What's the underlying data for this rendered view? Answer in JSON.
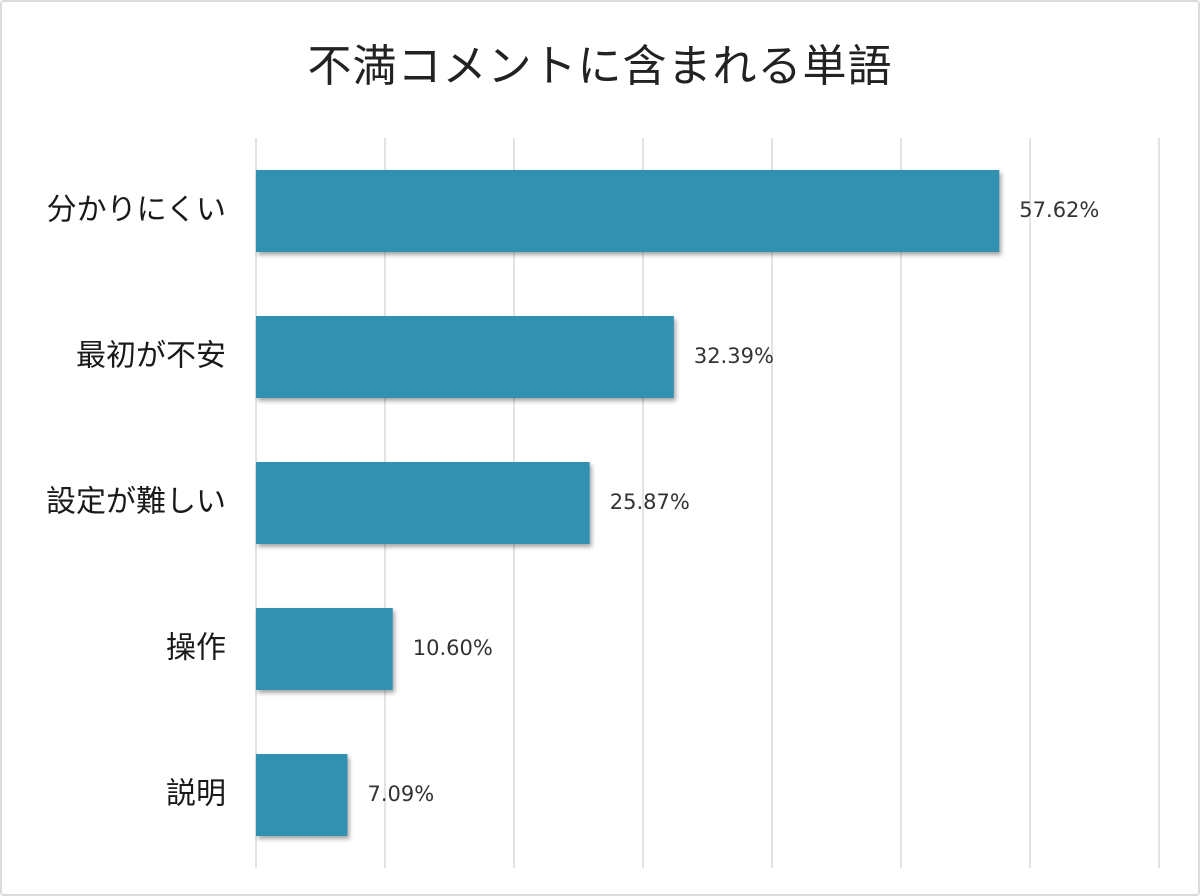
{
  "chart_data": {
    "type": "bar",
    "orientation": "horizontal",
    "title": "不満コメントに含まれる単語",
    "xlabel": "",
    "ylabel": "",
    "categories": [
      "分かりにくい",
      "最初が不安",
      "設定が難しい",
      "操作",
      "説明"
    ],
    "values": [
      57.62,
      32.39,
      25.87,
      10.6,
      7.09
    ],
    "value_labels": [
      "57.62%",
      "32.39%",
      "25.87%",
      "10.60%",
      "7.09%"
    ],
    "xlim": [
      0,
      70
    ],
    "grid": true,
    "legend": "none",
    "bar_color": "#3391b1",
    "gridline_color": "#d9d9d9"
  }
}
